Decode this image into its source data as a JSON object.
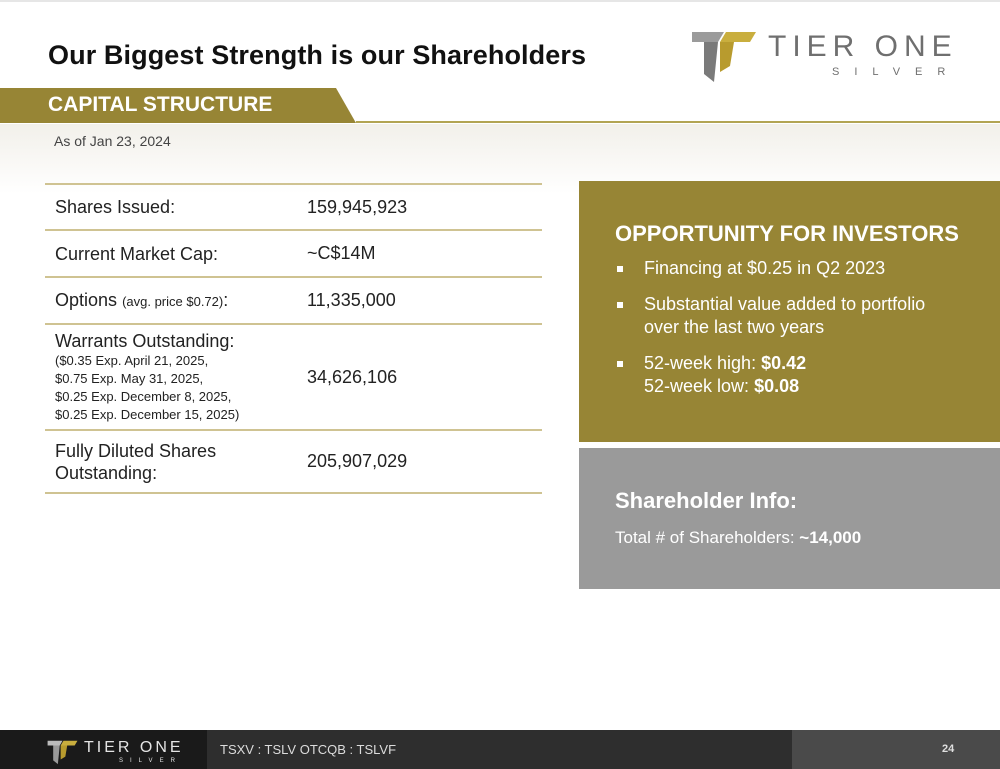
{
  "title": "Our Biggest Strength is our Shareholders",
  "logo": {
    "brand": "TIER ONE",
    "sub": "SILVER"
  },
  "section": {
    "title": "CAPITAL STRUCTURE",
    "as_of": "As of Jan 23, 2024"
  },
  "table": {
    "shares_issued": {
      "label": "Shares Issued:",
      "value": "159,945,923"
    },
    "market_cap": {
      "label": "Current Market Cap:",
      "value": "~C$14M"
    },
    "options": {
      "label": "Options",
      "note": "(avg. price $0.72)",
      "colon": ":",
      "value": "11,335,000"
    },
    "warrants": {
      "label": "Warrants Outstanding:",
      "lines": [
        "($0.35 Exp. April 21, 2025,",
        "$0.75 Exp. May 31, 2025,",
        "$0.25 Exp. December 8, 2025,",
        "$0.25 Exp. December 15, 2025)"
      ],
      "value": "34,626,106"
    },
    "fully_diluted": {
      "label_line1": "Fully Diluted Shares",
      "label_line2": "Outstanding:",
      "value": "205,907,029"
    }
  },
  "opportunity": {
    "title": "OPPORTUNITY FOR INVESTORS",
    "b1": "Financing at $0.25 in Q2 2023",
    "b2_line1": "Substantial value added to portfolio",
    "b2_line2": "over the last two years",
    "high_label": "52-week high: ",
    "high_value": "$0.42",
    "low_label": "52-week low: ",
    "low_value": "$0.08"
  },
  "shareholder": {
    "title": "Shareholder Info:",
    "label": "Total # of Shareholders: ",
    "value": "~14,000"
  },
  "footer": {
    "brand": "TIER ONE",
    "sub": "SILVER",
    "tickers": "TSXV : TSLV   OTCQB : TSLVF",
    "page": "24"
  },
  "colors": {
    "gold": "#978535",
    "gold_light": "#b2a453",
    "grey_box": "#9a9a9a",
    "footer": "#2e2e2e"
  }
}
